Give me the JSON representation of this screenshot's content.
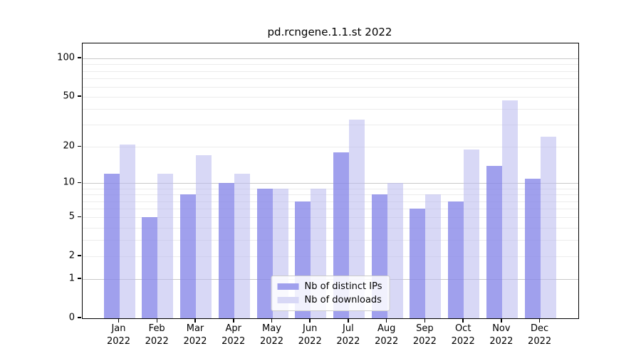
{
  "title": "pd.rcngene.1.1.st 2022",
  "colors": {
    "ips_bar": "#8888e8cc",
    "downloads_bar": "#b8b8ee8c",
    "ips_swatch": "#a0a0ed",
    "downloads_swatch": "#d8d8f6",
    "grid_major": "#c9c9c9",
    "grid_minor": "#ececec",
    "spine": "#000000"
  },
  "legend": {
    "items": [
      {
        "key": "ips",
        "label": "Nb of distinct IPs"
      },
      {
        "key": "downloads",
        "label": "Nb of downloads"
      }
    ]
  },
  "chart_data": {
    "type": "bar",
    "title": "pd.rcngene.1.1.st 2022",
    "xlabel": "",
    "ylabel": "",
    "categories": [
      "Jan 2022",
      "Feb 2022",
      "Mar 2022",
      "Apr 2022",
      "May 2022",
      "Jun 2022",
      "Jul 2022",
      "Aug 2022",
      "Sep 2022",
      "Oct 2022",
      "Nov 2022",
      "Dec 2022"
    ],
    "series": [
      {
        "name": "Nb of distinct IPs",
        "values": [
          12,
          5,
          8,
          10,
          9,
          7,
          18,
          8,
          6,
          7,
          14,
          11
        ]
      },
      {
        "name": "Nb of downloads",
        "values": [
          21,
          12,
          17,
          12,
          9,
          9,
          33,
          10,
          8,
          19,
          47,
          24
        ]
      }
    ],
    "y_scale": "log1p",
    "y_ticks": [
      0,
      1,
      2,
      5,
      10,
      20,
      50,
      100
    ],
    "y_minor_gridlines": [
      2,
      3,
      4,
      5,
      6,
      7,
      8,
      9,
      20,
      30,
      40,
      50,
      60,
      70,
      80,
      90
    ],
    "y_major_gridlines": [
      1,
      10,
      100
    ],
    "ylim": [
      0,
      130
    ],
    "grid": true,
    "legend_position": "lower center"
  }
}
